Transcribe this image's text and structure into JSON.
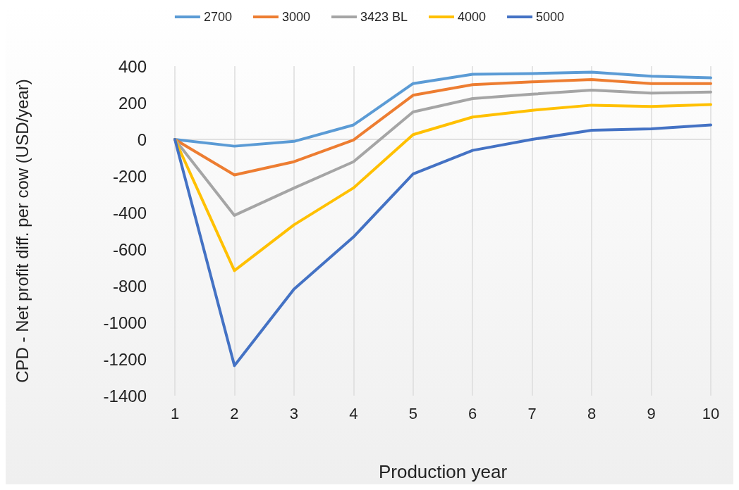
{
  "chart_data": {
    "type": "line",
    "xlabel": "Production year",
    "ylabel": "CPD - Net profit diff. per cow (USD/year)",
    "categories": [
      "1",
      "2",
      "3",
      "4",
      "5",
      "6",
      "7",
      "8",
      "9",
      "10"
    ],
    "series": [
      {
        "name": "2700",
        "color": "#5b9bd5",
        "values": [
          0,
          -37,
          -11,
          79,
          305,
          356,
          360,
          367,
          345,
          337
        ]
      },
      {
        "name": "3000",
        "color": "#ed7d31",
        "values": [
          0,
          -194,
          -122,
          -3,
          241,
          299,
          314,
          327,
          305,
          305
        ]
      },
      {
        "name": "3423 BL",
        "color": "#a5a5a5",
        "values": [
          0,
          -415,
          -266,
          -122,
          150,
          223,
          247,
          269,
          253,
          259
        ]
      },
      {
        "name": "4000",
        "color": "#ffc000",
        "values": [
          0,
          -717,
          -467,
          -265,
          26,
          122,
          159,
          187,
          180,
          190
        ]
      },
      {
        "name": "5000",
        "color": "#4472c4",
        "values": [
          0,
          -1236,
          -818,
          -533,
          -189,
          -60,
          0,
          50,
          58,
          79
        ]
      }
    ],
    "ylim": [
      -1400,
      400
    ],
    "yticks": [
      -1400,
      -1200,
      -1000,
      -800,
      -600,
      -400,
      -200,
      0,
      200,
      400
    ],
    "grid": "x",
    "legend": "top",
    "marker": "none",
    "line_style": "solid"
  }
}
